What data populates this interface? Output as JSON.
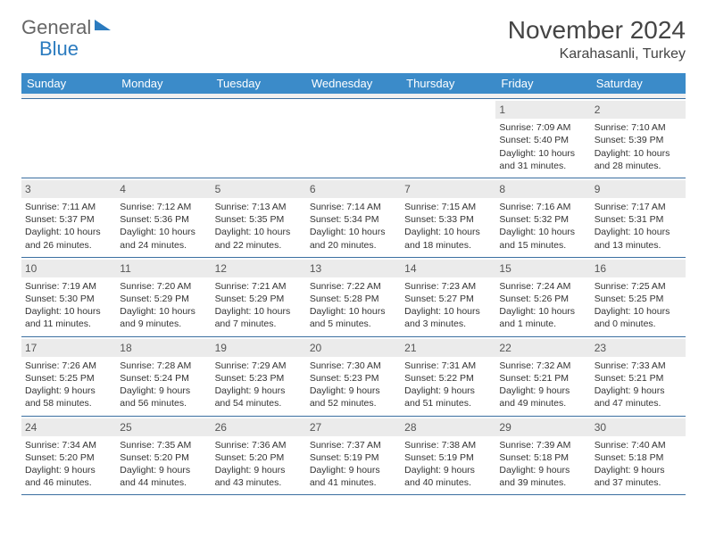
{
  "logo": {
    "part1": "General",
    "part2": "Blue"
  },
  "title": "November 2024",
  "location": "Karahasanli, Turkey",
  "colors": {
    "header_bg": "#3b8bc9",
    "header_text": "#ffffff",
    "daynum_bg": "#ebebeb",
    "week_border": "#3b6fa0",
    "text": "#333333",
    "logo_blue": "#2b7bbf"
  },
  "weekdays": [
    "Sunday",
    "Monday",
    "Tuesday",
    "Wednesday",
    "Thursday",
    "Friday",
    "Saturday"
  ],
  "weeks": [
    [
      {
        "n": "",
        "empty": true
      },
      {
        "n": "",
        "empty": true
      },
      {
        "n": "",
        "empty": true
      },
      {
        "n": "",
        "empty": true
      },
      {
        "n": "",
        "empty": true
      },
      {
        "n": "1",
        "sunrise": "Sunrise: 7:09 AM",
        "sunset": "Sunset: 5:40 PM",
        "daylight": "Daylight: 10 hours and 31 minutes."
      },
      {
        "n": "2",
        "sunrise": "Sunrise: 7:10 AM",
        "sunset": "Sunset: 5:39 PM",
        "daylight": "Daylight: 10 hours and 28 minutes."
      }
    ],
    [
      {
        "n": "3",
        "sunrise": "Sunrise: 7:11 AM",
        "sunset": "Sunset: 5:37 PM",
        "daylight": "Daylight: 10 hours and 26 minutes."
      },
      {
        "n": "4",
        "sunrise": "Sunrise: 7:12 AM",
        "sunset": "Sunset: 5:36 PM",
        "daylight": "Daylight: 10 hours and 24 minutes."
      },
      {
        "n": "5",
        "sunrise": "Sunrise: 7:13 AM",
        "sunset": "Sunset: 5:35 PM",
        "daylight": "Daylight: 10 hours and 22 minutes."
      },
      {
        "n": "6",
        "sunrise": "Sunrise: 7:14 AM",
        "sunset": "Sunset: 5:34 PM",
        "daylight": "Daylight: 10 hours and 20 minutes."
      },
      {
        "n": "7",
        "sunrise": "Sunrise: 7:15 AM",
        "sunset": "Sunset: 5:33 PM",
        "daylight": "Daylight: 10 hours and 18 minutes."
      },
      {
        "n": "8",
        "sunrise": "Sunrise: 7:16 AM",
        "sunset": "Sunset: 5:32 PM",
        "daylight": "Daylight: 10 hours and 15 minutes."
      },
      {
        "n": "9",
        "sunrise": "Sunrise: 7:17 AM",
        "sunset": "Sunset: 5:31 PM",
        "daylight": "Daylight: 10 hours and 13 minutes."
      }
    ],
    [
      {
        "n": "10",
        "sunrise": "Sunrise: 7:19 AM",
        "sunset": "Sunset: 5:30 PM",
        "daylight": "Daylight: 10 hours and 11 minutes."
      },
      {
        "n": "11",
        "sunrise": "Sunrise: 7:20 AM",
        "sunset": "Sunset: 5:29 PM",
        "daylight": "Daylight: 10 hours and 9 minutes."
      },
      {
        "n": "12",
        "sunrise": "Sunrise: 7:21 AM",
        "sunset": "Sunset: 5:29 PM",
        "daylight": "Daylight: 10 hours and 7 minutes."
      },
      {
        "n": "13",
        "sunrise": "Sunrise: 7:22 AM",
        "sunset": "Sunset: 5:28 PM",
        "daylight": "Daylight: 10 hours and 5 minutes."
      },
      {
        "n": "14",
        "sunrise": "Sunrise: 7:23 AM",
        "sunset": "Sunset: 5:27 PM",
        "daylight": "Daylight: 10 hours and 3 minutes."
      },
      {
        "n": "15",
        "sunrise": "Sunrise: 7:24 AM",
        "sunset": "Sunset: 5:26 PM",
        "daylight": "Daylight: 10 hours and 1 minute."
      },
      {
        "n": "16",
        "sunrise": "Sunrise: 7:25 AM",
        "sunset": "Sunset: 5:25 PM",
        "daylight": "Daylight: 10 hours and 0 minutes."
      }
    ],
    [
      {
        "n": "17",
        "sunrise": "Sunrise: 7:26 AM",
        "sunset": "Sunset: 5:25 PM",
        "daylight": "Daylight: 9 hours and 58 minutes."
      },
      {
        "n": "18",
        "sunrise": "Sunrise: 7:28 AM",
        "sunset": "Sunset: 5:24 PM",
        "daylight": "Daylight: 9 hours and 56 minutes."
      },
      {
        "n": "19",
        "sunrise": "Sunrise: 7:29 AM",
        "sunset": "Sunset: 5:23 PM",
        "daylight": "Daylight: 9 hours and 54 minutes."
      },
      {
        "n": "20",
        "sunrise": "Sunrise: 7:30 AM",
        "sunset": "Sunset: 5:23 PM",
        "daylight": "Daylight: 9 hours and 52 minutes."
      },
      {
        "n": "21",
        "sunrise": "Sunrise: 7:31 AM",
        "sunset": "Sunset: 5:22 PM",
        "daylight": "Daylight: 9 hours and 51 minutes."
      },
      {
        "n": "22",
        "sunrise": "Sunrise: 7:32 AM",
        "sunset": "Sunset: 5:21 PM",
        "daylight": "Daylight: 9 hours and 49 minutes."
      },
      {
        "n": "23",
        "sunrise": "Sunrise: 7:33 AM",
        "sunset": "Sunset: 5:21 PM",
        "daylight": "Daylight: 9 hours and 47 minutes."
      }
    ],
    [
      {
        "n": "24",
        "sunrise": "Sunrise: 7:34 AM",
        "sunset": "Sunset: 5:20 PM",
        "daylight": "Daylight: 9 hours and 46 minutes."
      },
      {
        "n": "25",
        "sunrise": "Sunrise: 7:35 AM",
        "sunset": "Sunset: 5:20 PM",
        "daylight": "Daylight: 9 hours and 44 minutes."
      },
      {
        "n": "26",
        "sunrise": "Sunrise: 7:36 AM",
        "sunset": "Sunset: 5:20 PM",
        "daylight": "Daylight: 9 hours and 43 minutes."
      },
      {
        "n": "27",
        "sunrise": "Sunrise: 7:37 AM",
        "sunset": "Sunset: 5:19 PM",
        "daylight": "Daylight: 9 hours and 41 minutes."
      },
      {
        "n": "28",
        "sunrise": "Sunrise: 7:38 AM",
        "sunset": "Sunset: 5:19 PM",
        "daylight": "Daylight: 9 hours and 40 minutes."
      },
      {
        "n": "29",
        "sunrise": "Sunrise: 7:39 AM",
        "sunset": "Sunset: 5:18 PM",
        "daylight": "Daylight: 9 hours and 39 minutes."
      },
      {
        "n": "30",
        "sunrise": "Sunrise: 7:40 AM",
        "sunset": "Sunset: 5:18 PM",
        "daylight": "Daylight: 9 hours and 37 minutes."
      }
    ]
  ]
}
